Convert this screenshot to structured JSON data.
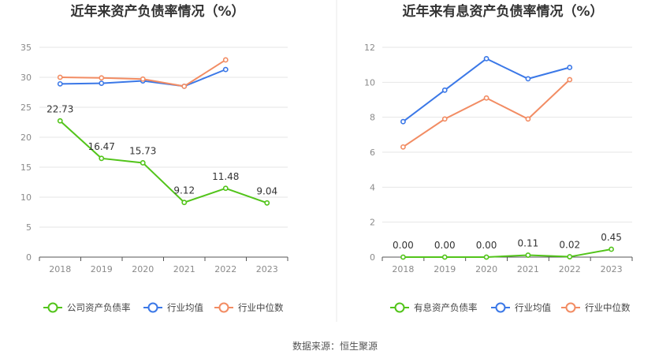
{
  "source_prefix": "数据来源：",
  "source_name": "恒生聚源",
  "colors": {
    "green": "#52c41a",
    "blue": "#3b78e7",
    "orange": "#f28c63"
  },
  "chart_data": [
    {
      "type": "line",
      "title": "近年来资产负债率情况（%）",
      "categories": [
        "2018",
        "2019",
        "2020",
        "2021",
        "2022",
        "2023"
      ],
      "ylim": [
        0,
        35
      ],
      "yticks": [
        0,
        5,
        10,
        15,
        20,
        25,
        30,
        35
      ],
      "grid": true,
      "legend_position": "bottom",
      "series": [
        {
          "name": "公司资产负债率",
          "color": "#52c41a",
          "labeled": true,
          "values": [
            22.73,
            16.47,
            15.73,
            9.12,
            11.48,
            9.04
          ]
        },
        {
          "name": "行业均值",
          "color": "#3b78e7",
          "labeled": false,
          "values": [
            28.9,
            29.0,
            29.4,
            28.5,
            31.3,
            null
          ]
        },
        {
          "name": "行业中位数",
          "color": "#f28c63",
          "labeled": false,
          "values": [
            30.0,
            29.9,
            29.7,
            28.5,
            32.9,
            null
          ]
        }
      ]
    },
    {
      "type": "line",
      "title": "近年来有息资产负债率情况（%）",
      "categories": [
        "2018",
        "2019",
        "2020",
        "2021",
        "2022",
        "2023"
      ],
      "ylim": [
        0,
        12
      ],
      "yticks": [
        0,
        2,
        4,
        6,
        8,
        10,
        12
      ],
      "grid": true,
      "legend_position": "bottom",
      "series": [
        {
          "name": "有息资产负债率",
          "color": "#52c41a",
          "labeled": true,
          "values": [
            0.0,
            0.0,
            0.0,
            0.11,
            0.02,
            0.45
          ]
        },
        {
          "name": "行业均值",
          "color": "#3b78e7",
          "labeled": false,
          "values": [
            7.75,
            9.55,
            11.35,
            10.2,
            10.85,
            null
          ]
        },
        {
          "name": "行业中位数",
          "color": "#f28c63",
          "labeled": false,
          "values": [
            6.3,
            7.9,
            9.1,
            7.9,
            10.15,
            null
          ]
        }
      ]
    }
  ]
}
